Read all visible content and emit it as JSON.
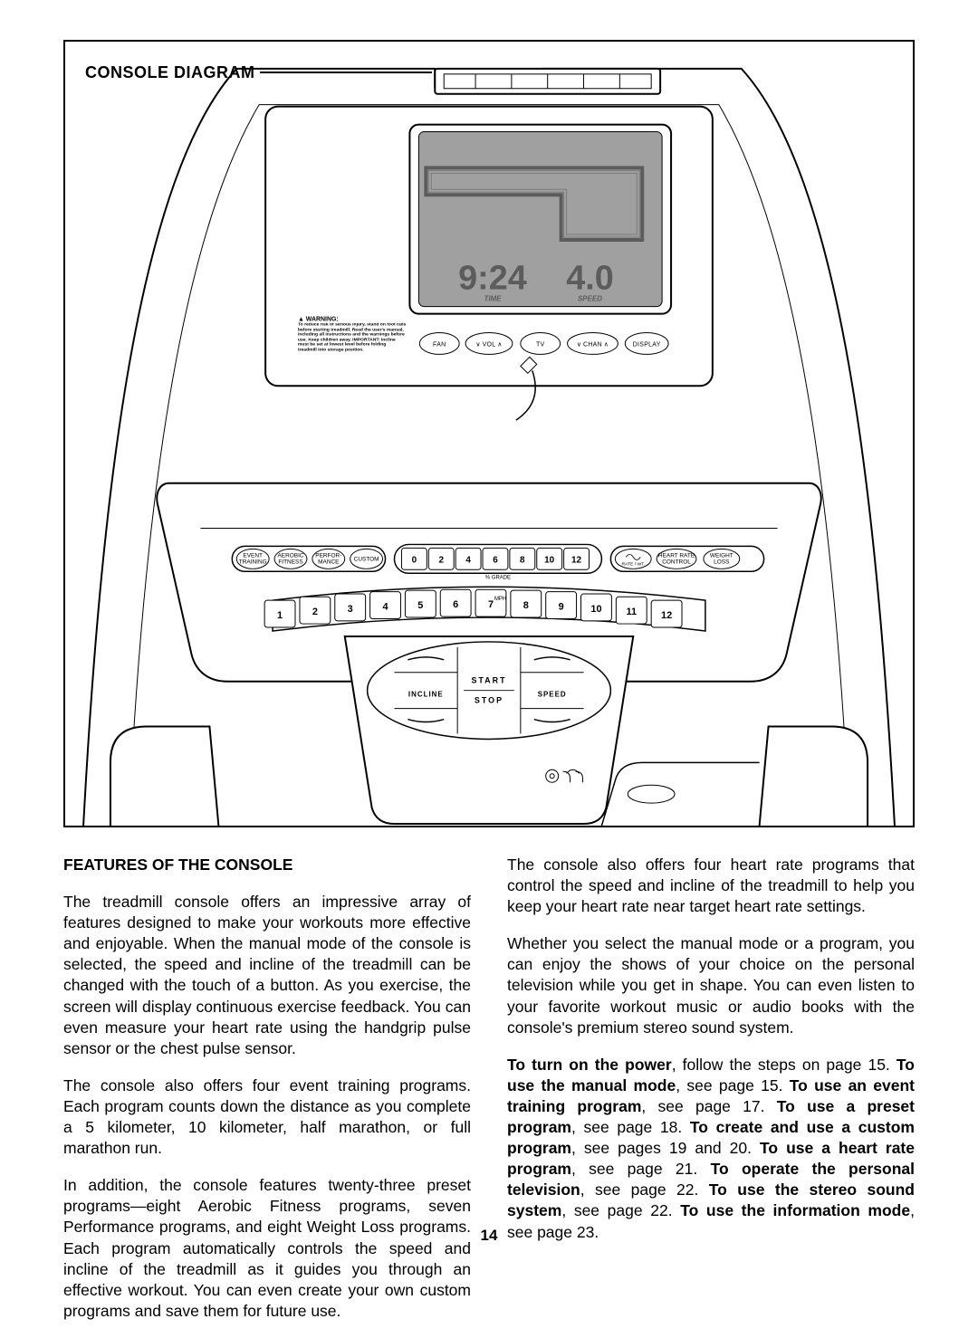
{
  "diagram": {
    "title": "CONSOLE DIAGRAM",
    "display": {
      "time_value": "9:24",
      "time_label": "TIME",
      "speed_value": "4.0",
      "speed_label": "SPEED",
      "bg_color": "#a0a0a0",
      "digit_color": "#5c5c5c",
      "digit_font_family": "Arial Narrow, Arial",
      "digit_font_size": 34,
      "label_font_size": 7
    },
    "warning": {
      "title": "▲ WARNING:",
      "body": "To reduce risk of serious injury, stand on foot rails before starting treadmill. Read the user's manual, including all instructions and the warnings before use. Keep children away. IMPORTANT: Incline must be set at lowest level before folding treadmill into storage position."
    },
    "top_buttons": [
      "FAN",
      "VOL",
      "TV",
      "CHAN",
      "DISPLAY"
    ],
    "top_button_arrows": [
      false,
      true,
      false,
      true,
      false
    ],
    "program_buttons_left": [
      "EVENT\nTRAINING",
      "AEROBIC\nFITNESS",
      "PERFOR-\nMANCE",
      "CUSTOM"
    ],
    "grade_buttons": [
      "0",
      "2",
      "4",
      "6",
      "8",
      "10",
      "12"
    ],
    "grade_label": "% GRADE",
    "program_buttons_right": [
      "RATE\n/ WT.",
      "HEART RATE\nCONTROL",
      "WEIGHT\nLOSS"
    ],
    "mph_buttons": [
      "1",
      "2",
      "3",
      "4",
      "5",
      "6",
      "7",
      "8",
      "9",
      "10",
      "11",
      "12"
    ],
    "mph_label": "MPH",
    "center_controls": {
      "start": "START",
      "stop": "STOP",
      "incline": "INCLINE",
      "speed": "SPEED"
    },
    "colors": {
      "stroke": "#000000",
      "fill_light": "#ffffff",
      "fill_gray": "#a0a0a0"
    }
  },
  "features": {
    "heading": "FEATURES OF THE CONSOLE",
    "left_paras": [
      "The treadmill console offers an impressive array of features designed to make your workouts more effective and enjoyable. When the manual mode of the console is selected, the speed and incline of the treadmill can be changed with the touch of a button. As you exercise, the screen will display continuous exercise feedback. You can even measure your heart rate using the handgrip pulse sensor or the chest pulse sensor.",
      "The console also offers four event training programs. Each program counts down the distance as you complete a 5 kilometer, 10 kilometer, half marathon, or full marathon run.",
      "In addition, the console features twenty-three preset programs—eight Aerobic Fitness programs, seven Performance programs, and eight Weight Loss programs. Each program automatically controls the speed and incline of the treadmill as it guides you through an effective workout. You can even create your own custom programs and save them for future use."
    ],
    "right_paras": [
      "The console also offers four heart rate programs that control the speed and incline of the treadmill to help you keep your heart rate near target heart rate settings.",
      "Whether you select the manual mode or a program, you can enjoy the shows of your choice on the personal television while you get in shape. You can even listen to your favorite workout music or audio books with the console's premium stereo sound system."
    ],
    "right_bold_html": "<b>To turn on the power</b>, follow the steps on page 15. <b>To use the manual mode</b>, see page 15. <b>To use an event training program</b>, see page 17. <b>To use a preset program</b>, see page 18. <b>To create and use a custom program</b>, see pages 19 and 20. <b>To use a heart rate program</b>, see page 21. <b>To operate the personal television</b>, see page 22. <b>To use the stereo sound system</b>, see page 22. <b>To use the information mode</b>, see page 23."
  },
  "page_number": "14"
}
